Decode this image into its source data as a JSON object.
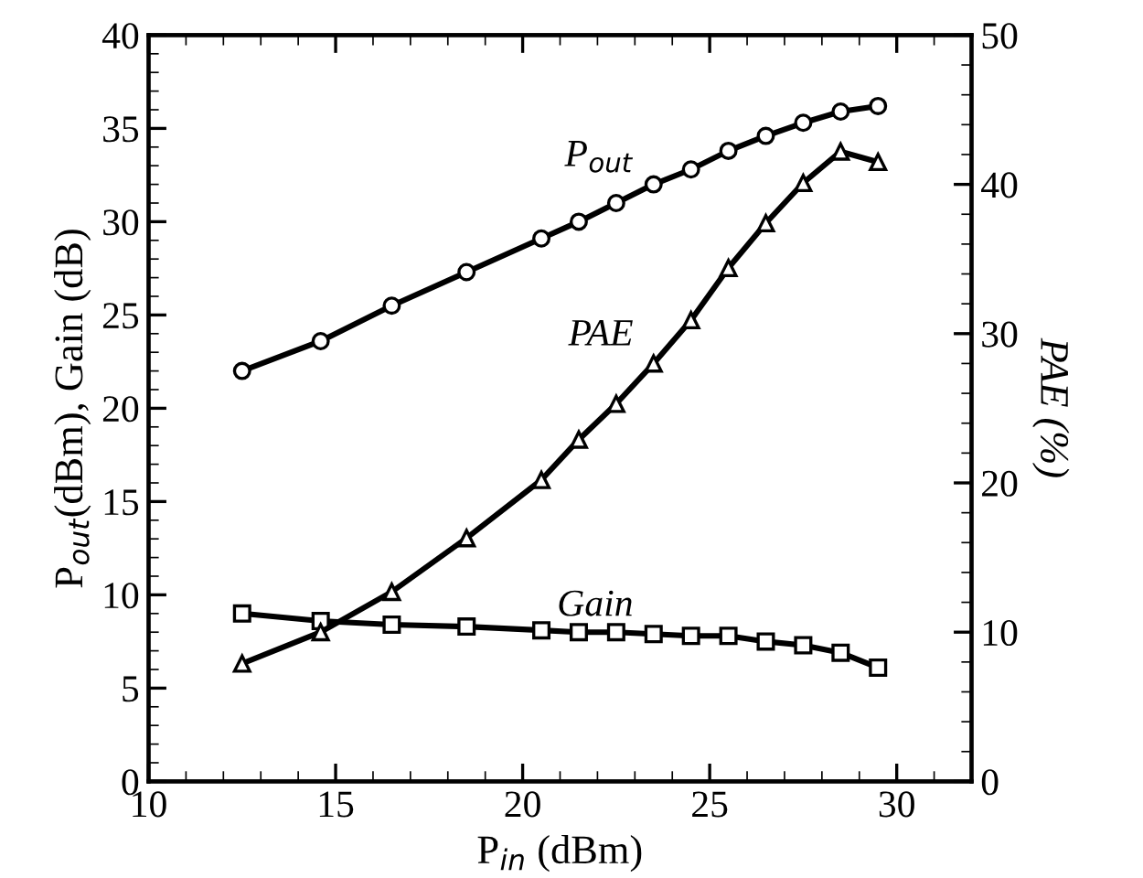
{
  "chart_data": {
    "type": "line",
    "xlabel": "P$_{in}$ (dBm)",
    "ylabel": "P$_{out}$(dBm), Gain (dB)",
    "y2label": "PAE (%)",
    "x": [
      12.5,
      14.6,
      16.5,
      18.5,
      20.5,
      21.5,
      22.5,
      23.5,
      24.5,
      25.5,
      26.5,
      27.5,
      28.5,
      29.5
    ],
    "xlim": [
      10,
      32
    ],
    "xticks": [
      10,
      15,
      20,
      25,
      30
    ],
    "ylim": [
      0,
      40
    ],
    "yticks": [
      0,
      5,
      10,
      15,
      20,
      25,
      30,
      35,
      40
    ],
    "y2lim": [
      0,
      50
    ],
    "y2ticks": [
      0,
      10,
      20,
      30,
      40,
      50
    ],
    "grid": false,
    "legend": false,
    "line_style": "solid",
    "series": [
      {
        "name": "P$_{out}$",
        "color": "#000000",
        "marker": "circle",
        "values": [
          22.0,
          23.6,
          25.5,
          27.3,
          29.1,
          30.0,
          31.0,
          32.0,
          32.8,
          33.8,
          34.6,
          35.3,
          35.9,
          36.2
        ]
      },
      {
        "name": "PAE",
        "color": "#000000",
        "marker": "triangle",
        "axis": "y2",
        "values": [
          7.9,
          10.0,
          12.7,
          16.3,
          20.2,
          22.9,
          25.3,
          28.0,
          30.9,
          34.4,
          37.4,
          40.1,
          42.2,
          41.5
        ]
      },
      {
        "name": "Gain",
        "color": "#000000",
        "marker": "square",
        "values": [
          9.0,
          8.6,
          8.4,
          8.3,
          8.1,
          8.0,
          8.0,
          7.9,
          7.8,
          7.8,
          7.5,
          7.3,
          6.9,
          6.1
        ]
      }
    ]
  }
}
